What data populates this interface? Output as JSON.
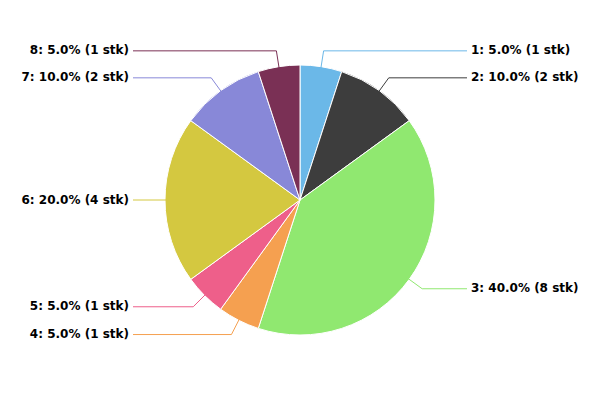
{
  "chart_data": {
    "type": "pie",
    "categories": [
      "1",
      "2",
      "3",
      "4",
      "5",
      "6",
      "7",
      "8"
    ],
    "values": [
      5.0,
      10.0,
      40.0,
      5.0,
      5.0,
      20.0,
      10.0,
      5.0
    ],
    "counts": [
      1,
      2,
      8,
      1,
      1,
      4,
      2,
      1
    ],
    "value_labels": [
      "1: 5.0% (1 stk)",
      "2: 10.0% (2 stk)",
      "3: 40.0% (8 stk)",
      "4: 5.0% (1 stk)",
      "5: 5.0% (1 stk)",
      "6: 20.0% (4 stk)",
      "7: 10.0% (2 stk)",
      "8: 5.0% (1 stk)"
    ],
    "colors": [
      "#6bb8e8",
      "#3d3d3d",
      "#90e870",
      "#f5a050",
      "#ee5f8a",
      "#d4c840",
      "#8888d8",
      "#7a3055"
    ],
    "data_labels": true
  }
}
